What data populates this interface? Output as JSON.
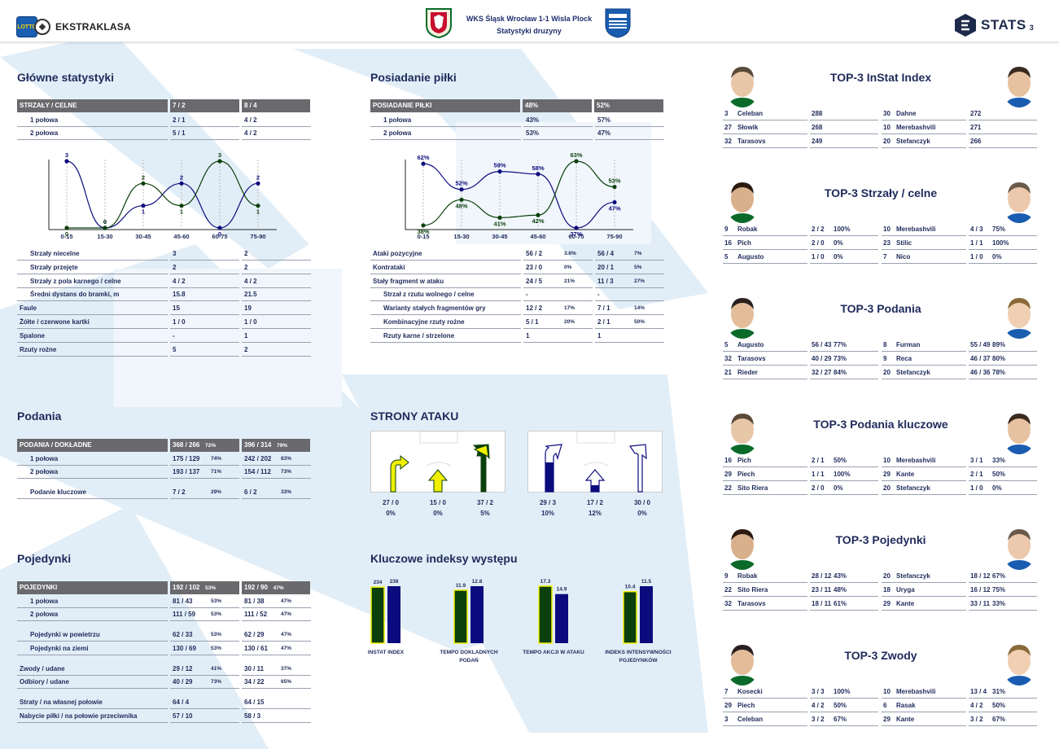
{
  "header": {
    "title_line1": "WKS Śląsk Wrocław 1-1 Wisla Plock",
    "title_line2": "Statystyki druzyny",
    "league_logo_text": "EKSTRAKLASA",
    "lotto_text": "LOTTO",
    "stats_logo_text": "STATS",
    "page_number": "3"
  },
  "colors": {
    "home": "#0b3f0b",
    "away": "#0b0b7e",
    "yellow": "#f0f000",
    "header_bar": "#6a6a6e"
  },
  "main_stats": {
    "title": "Główne statystyki",
    "header": {
      "label": "STRZAŁY / CELNE",
      "home": "7 / 2",
      "away": "8 / 4"
    },
    "halves": [
      {
        "label": "1 połowa",
        "home": "2 / 1",
        "away": "4 / 2"
      },
      {
        "label": "2 połowa",
        "home": "5 / 1",
        "away": "4 / 2"
      }
    ],
    "rows": [
      {
        "label": "Strzały niecelne",
        "home": "3",
        "away": "2"
      },
      {
        "label": "Strzały przejęte",
        "home": "2",
        "away": "2"
      },
      {
        "label": "Strzały z pola karnego / celne",
        "home": "4 / 2",
        "away": "4 / 2"
      },
      {
        "label": "Średni dystans do bramki, m",
        "home": "15.8",
        "away": "21.5"
      },
      {
        "label": "Faule",
        "home": "15",
        "away": "19"
      },
      {
        "label": "Żółte / czerwone kartki",
        "home": "1 / 0",
        "away": "1 / 0"
      },
      {
        "label": "Spalone",
        "home": "-",
        "away": "1"
      },
      {
        "label": "Rzuty rożne",
        "home": "5",
        "away": "2"
      }
    ]
  },
  "possession": {
    "title": "Posiadanie piłki",
    "header": {
      "label": "POSIADANIE PIŁKI",
      "home": "48%",
      "away": "52%"
    },
    "halves": [
      {
        "label": "1 połowa",
        "home": "43%",
        "away": "57%"
      },
      {
        "label": "2 połowa",
        "home": "53%",
        "away": "47%"
      }
    ],
    "rows": [
      {
        "label": "Ataki pozycyjne",
        "home": "56 / 2",
        "home_pct": "3.6%",
        "away": "56 / 4",
        "away_pct": "7%",
        "indent": false
      },
      {
        "label": "Kontrataki",
        "home": "23 / 0",
        "home_pct": "0%",
        "away": "20 / 1",
        "away_pct": "5%",
        "indent": false
      },
      {
        "label": "Stały fragment w ataku",
        "home": "24 / 5",
        "home_pct": "21%",
        "away": "11 / 3",
        "away_pct": "27%",
        "indent": false
      },
      {
        "label": "Strzał z rzutu wolnego / celne",
        "home": "-",
        "home_pct": "",
        "away": "-",
        "away_pct": "",
        "indent": true
      },
      {
        "label": "Warianty stałych fragmentów gry",
        "home": "12 / 2",
        "home_pct": "17%",
        "away": "7 / 1",
        "away_pct": "14%",
        "indent": true
      },
      {
        "label": "Kombinacyjne rzuty rożne",
        "home": "5 / 1",
        "home_pct": "20%",
        "away": "2 / 1",
        "away_pct": "50%",
        "indent": true
      },
      {
        "label": "Rzuty karne / strzelone",
        "home": "1",
        "home_pct": "",
        "away": "1",
        "away_pct": "",
        "indent": true
      }
    ]
  },
  "chart_data": [
    {
      "type": "line",
      "categories": [
        "0-15",
        "15-30",
        "30-45",
        "45-60",
        "60-75",
        "75-90"
      ],
      "series": [
        {
          "values": [
            3,
            0,
            1,
            2,
            0,
            2
          ]
        },
        {
          "values": [
            0,
            0,
            2,
            1,
            3,
            1
          ]
        }
      ],
      "ylim": [
        0,
        3
      ]
    },
    {
      "type": "line",
      "categories": [
        "0-15",
        "15-30",
        "30-45",
        "45-60",
        "60-75",
        "75-90"
      ],
      "series": [
        {
          "values": [
            62,
            52,
            59,
            58,
            37,
            47
          ]
        },
        {
          "values": [
            38,
            48,
            41,
            42,
            63,
            53
          ]
        }
      ],
      "ylim": [
        37,
        63
      ]
    },
    {
      "type": "bar",
      "categories": [
        "INSTAT INDEX",
        "TEMPO DOKLADNYCH PODAŃ",
        "TEMPO AKCJI W ATAKU",
        "INDEKS INTENSYWNOŚCI POJEDYNKÓW"
      ],
      "series": [
        {
          "values": [
            234,
            11.9,
            17.3,
            10.4
          ]
        },
        {
          "values": [
            238,
            12.8,
            14.9,
            11.5
          ]
        }
      ]
    }
  ],
  "passes": {
    "title": "Podania",
    "header": {
      "label": "PODANIA / DOKŁADNE",
      "home": "368 / 266",
      "home_pct": "72%",
      "away": "396 / 314",
      "away_pct": "79%"
    },
    "rows": [
      {
        "label": "1 połowa",
        "home": "175 / 129",
        "home_pct": "74%",
        "away": "242 / 202",
        "away_pct": "83%"
      },
      {
        "label": "2 połowa",
        "home": "193 / 137",
        "home_pct": "71%",
        "away": "154 / 112",
        "away_pct": "73%"
      },
      {
        "label": "Podanie kluczowe",
        "home": "7 / 2",
        "home_pct": "29%",
        "away": "6 / 2",
        "away_pct": "33%"
      }
    ]
  },
  "duels": {
    "title": "Pojedynki",
    "header": {
      "label": "POJEDYNKI",
      "home": "192 / 102",
      "home_pct": "53%",
      "away": "192 / 90",
      "away_pct": "47%"
    },
    "rows": [
      {
        "label": "1 połowa",
        "home": "81 / 43",
        "home_pct": "53%",
        "away": "81 / 38",
        "away_pct": "47%",
        "indent": true
      },
      {
        "label": "2 połowa",
        "home": "111 / 59",
        "home_pct": "53%",
        "away": "111 / 52",
        "away_pct": "47%",
        "indent": true
      },
      {
        "label": "Pojedynki w powietrzu",
        "home": "62 / 33",
        "home_pct": "53%",
        "away": "62 / 29",
        "away_pct": "47%",
        "indent": true
      },
      {
        "label": "Pojedynki na ziemi",
        "home": "130 / 69",
        "home_pct": "53%",
        "away": "130 / 61",
        "away_pct": "47%",
        "indent": true
      },
      {
        "label": "Zwody / udane",
        "home": "29 / 12",
        "home_pct": "41%",
        "away": "30 / 11",
        "away_pct": "37%",
        "indent": false
      },
      {
        "label": "Odbiory / udane",
        "home": "40 / 29",
        "home_pct": "73%",
        "away": "34 / 22",
        "away_pct": "65%",
        "indent": false
      },
      {
        "label": "Straty / na własnej połowie",
        "home": "64 / 4",
        "home_pct": "",
        "away": "64 / 15",
        "away_pct": "",
        "indent": false
      },
      {
        "label": "Nabycie piłki / na połowie przeciwnika",
        "home": "57 / 10",
        "home_pct": "",
        "away": "58 / 3",
        "away_pct": "",
        "indent": false
      }
    ]
  },
  "attack_sides": {
    "title": "STRONY ATAKU",
    "home": [
      {
        "val": "27 / 0",
        "pct": "0%"
      },
      {
        "val": "15 / 0",
        "pct": "0%"
      },
      {
        "val": "37 / 2",
        "pct": "5%"
      }
    ],
    "away": [
      {
        "val": "29 / 3",
        "pct": "10%"
      },
      {
        "val": "17 / 2",
        "pct": "12%"
      },
      {
        "val": "30 / 0",
        "pct": "0%"
      }
    ]
  },
  "key_indexes": {
    "title": "Kluczowe indeksy występu",
    "items": [
      {
        "label": "INSTAT INDEX",
        "home": "234",
        "away": "238"
      },
      {
        "label": "TEMPO DOKLADNYCH PODAŃ",
        "home": "11.9",
        "away": "12.8"
      },
      {
        "label": "TEMPO AKCJI W ATAKU",
        "home": "17.3",
        "away": "14.9"
      },
      {
        "label": "INDEKS INTENSYWNOŚCI POJEDYNKÓW",
        "home": "10.4",
        "away": "11.5"
      }
    ]
  },
  "tops": [
    {
      "title": "TOP-3 InStat Index",
      "rows": [
        {
          "hn": "3",
          "hp": "Celeban",
          "hv": "288",
          "hpc": "",
          "an": "30",
          "ap": "Dahne",
          "av": "272",
          "apc": ""
        },
        {
          "hn": "27",
          "hp": "Słowik",
          "hv": "268",
          "hpc": "",
          "an": "10",
          "ap": "Merebashvili",
          "av": "271",
          "apc": ""
        },
        {
          "hn": "32",
          "hp": "Tarasovs",
          "hv": "249",
          "hpc": "",
          "an": "20",
          "ap": "Stefanczyk",
          "av": "266",
          "apc": ""
        }
      ]
    },
    {
      "title": "TOP-3 Strzały / celne",
      "rows": [
        {
          "hn": "9",
          "hp": "Robak",
          "hv": "2 / 2",
          "hpc": "100%",
          "an": "10",
          "ap": "Merebashvili",
          "av": "4 / 3",
          "apc": "75%"
        },
        {
          "hn": "16",
          "hp": "Pich",
          "hv": "2 / 0",
          "hpc": "0%",
          "an": "23",
          "ap": "Stilic",
          "av": "1 / 1",
          "apc": "100%"
        },
        {
          "hn": "5",
          "hp": "Augusto",
          "hv": "1 / 0",
          "hpc": "0%",
          "an": "7",
          "ap": "Nico",
          "av": "1 / 0",
          "apc": "0%"
        }
      ]
    },
    {
      "title": "TOP-3 Podania",
      "rows": [
        {
          "hn": "5",
          "hp": "Augusto",
          "hv": "56 / 43",
          "hpc": "77%",
          "an": "8",
          "ap": "Furman",
          "av": "55 / 49",
          "apc": "89%"
        },
        {
          "hn": "32",
          "hp": "Tarasovs",
          "hv": "40 / 29",
          "hpc": "73%",
          "an": "9",
          "ap": "Reca",
          "av": "46 / 37",
          "apc": "80%"
        },
        {
          "hn": "21",
          "hp": "Rieder",
          "hv": "32 / 27",
          "hpc": "84%",
          "an": "20",
          "ap": "Stefanczyk",
          "av": "46 / 36",
          "apc": "78%"
        }
      ]
    },
    {
      "title": "TOP-3 Podania kluczowe",
      "rows": [
        {
          "hn": "16",
          "hp": "Pich",
          "hv": "2 / 1",
          "hpc": "50%",
          "an": "10",
          "ap": "Merebashvili",
          "av": "3 / 1",
          "apc": "33%"
        },
        {
          "hn": "29",
          "hp": "Piech",
          "hv": "1 / 1",
          "hpc": "100%",
          "an": "29",
          "ap": "Kante",
          "av": "2 / 1",
          "apc": "50%"
        },
        {
          "hn": "22",
          "hp": "Sito Riera",
          "hv": "2 / 0",
          "hpc": "0%",
          "an": "20",
          "ap": "Stefanczyk",
          "av": "1 / 0",
          "apc": "0%"
        }
      ]
    },
    {
      "title": "TOP-3 Pojedynki",
      "rows": [
        {
          "hn": "9",
          "hp": "Robak",
          "hv": "28 / 12",
          "hpc": "43%",
          "an": "20",
          "ap": "Stefanczyk",
          "av": "18 / 12",
          "apc": "67%"
        },
        {
          "hn": "22",
          "hp": "Sito Riera",
          "hv": "23 / 11",
          "hpc": "48%",
          "an": "18",
          "ap": "Uryga",
          "av": "16 / 12",
          "apc": "75%"
        },
        {
          "hn": "32",
          "hp": "Tarasovs",
          "hv": "18 / 11",
          "hpc": "61%",
          "an": "29",
          "ap": "Kante",
          "av": "33 / 11",
          "apc": "33%"
        }
      ]
    },
    {
      "title": "TOP-3 Zwody",
      "rows": [
        {
          "hn": "7",
          "hp": "Kosecki",
          "hv": "3 / 3",
          "hpc": "100%",
          "an": "10",
          "ap": "Merebashvili",
          "av": "13 / 4",
          "apc": "31%"
        },
        {
          "hn": "29",
          "hp": "Piech",
          "hv": "4 / 2",
          "hpc": "50%",
          "an": "6",
          "ap": "Rasak",
          "av": "4 / 2",
          "apc": "50%"
        },
        {
          "hn": "3",
          "hp": "Celeban",
          "hv": "3 / 2",
          "hpc": "67%",
          "an": "29",
          "ap": "Kante",
          "av": "3 / 2",
          "apc": "67%"
        }
      ]
    }
  ]
}
